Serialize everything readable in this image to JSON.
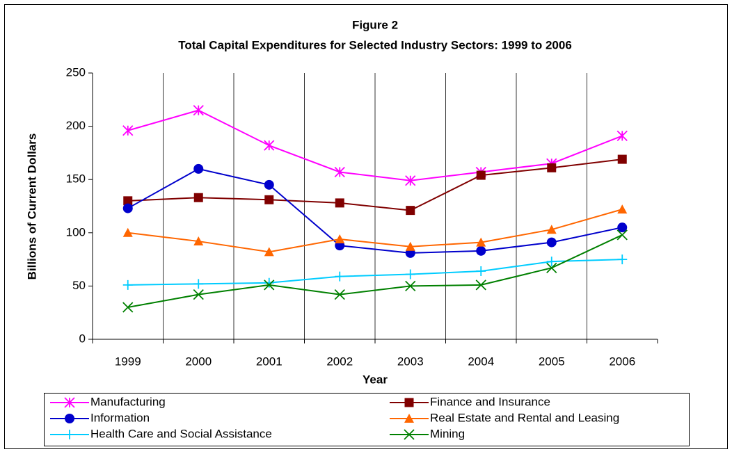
{
  "chart_data": {
    "type": "line",
    "title": "Figure 2",
    "subtitle": "Total Capital Expenditures for Selected Industry Sectors:  1999 to 2006",
    "x_label": "Year",
    "y_label": "Billions of Current Dollars",
    "categories": [
      "1999",
      "2000",
      "2001",
      "2002",
      "2003",
      "2004",
      "2005",
      "2006"
    ],
    "ylim": [
      0,
      250
    ],
    "yticks": [
      0,
      50,
      100,
      150,
      200,
      250
    ],
    "grid": "x",
    "legend": "bottom",
    "series": [
      {
        "name": "Manufacturing",
        "color": "#ff00ff",
        "marker": "star",
        "values": [
          196,
          215,
          182,
          157,
          149,
          157,
          165,
          191
        ]
      },
      {
        "name": "Finance and Insurance",
        "color": "#800000",
        "marker": "square",
        "values": [
          130,
          133,
          131,
          128,
          121,
          154,
          161,
          169
        ]
      },
      {
        "name": "Information",
        "color": "#0000cc",
        "marker": "circle",
        "values": [
          123,
          160,
          145,
          88,
          81,
          83,
          91,
          105
        ]
      },
      {
        "name": "Real Estate and Rental and Leasing",
        "color": "#ff6600",
        "marker": "triangle",
        "values": [
          100,
          92,
          82,
          94,
          87,
          91,
          103,
          122
        ]
      },
      {
        "name": "Health Care and Social Assistance",
        "color": "#00ccff",
        "marker": "plus",
        "values": [
          51,
          52,
          53,
          59,
          61,
          64,
          73,
          75
        ]
      },
      {
        "name": "Mining",
        "color": "#008000",
        "marker": "x",
        "values": [
          30,
          42,
          51,
          42,
          50,
          51,
          67,
          98
        ]
      }
    ]
  }
}
